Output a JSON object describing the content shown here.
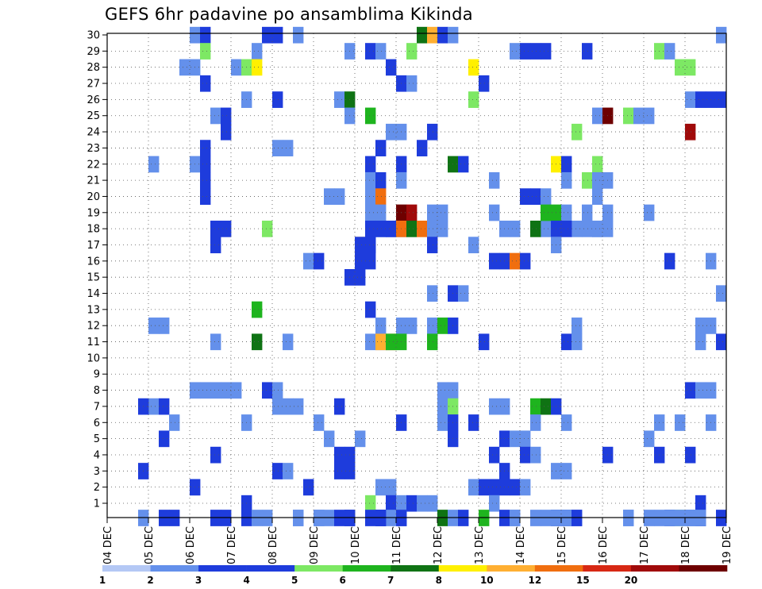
{
  "title": "GEFS 6hr padavine po ansamblima Kikinda",
  "chart_data": {
    "type": "heatmap",
    "title": "GEFS 6hr padavine po ansamblima Kikinda",
    "x_tick_labels": [
      "04 DEC",
      "05 DEC",
      "06 DEC",
      "07 DEC",
      "08 DEC",
      "09 DEC",
      "10 DEC",
      "11 DEC",
      "12 DEC",
      "13 DEC",
      "14 DEC",
      "15 DEC",
      "16 DEC",
      "17 DEC",
      "18 DEC",
      "19 DEC"
    ],
    "y_tick_labels": [
      "1",
      "2",
      "3",
      "4",
      "5",
      "6",
      "7",
      "8",
      "9",
      "10",
      "11",
      "12",
      "13",
      "14",
      "15",
      "16",
      "17",
      "18",
      "19",
      "20",
      "21",
      "22",
      "23",
      "24",
      "25",
      "26",
      "27",
      "28",
      "29",
      "30"
    ],
    "xlim": [
      0,
      60
    ],
    "ylim": [
      0,
      30
    ],
    "grid": true,
    "colorbar": {
      "labels": [
        "1",
        "2",
        "3",
        "4",
        "5",
        "6",
        "7",
        "8",
        "10",
        "12",
        "15",
        "20"
      ],
      "colors": [
        "#b4c8f5",
        "#6490eb",
        "#1e3cdc",
        "#1e3cdc",
        "#7de864",
        "#1eb41e",
        "#0f7314",
        "#fff000",
        "#ffaf32",
        "#f06e0f",
        "#d72814",
        "#a00a0a",
        "#6e0000"
      ],
      "breaks": [
        1,
        2,
        3,
        4,
        5,
        6,
        7,
        8,
        10,
        12,
        15,
        20
      ]
    },
    "cells": [
      [
        0,
        8,
        1
      ],
      [
        1,
        9,
        2
      ],
      [
        2,
        15,
        2
      ],
      [
        3,
        16,
        2
      ],
      [
        4,
        18,
        1
      ],
      [
        5,
        30,
        6
      ],
      [
        6,
        31,
        8
      ],
      [
        7,
        32,
        2
      ],
      [
        8,
        33,
        1
      ],
      [
        9,
        59,
        1
      ],
      [
        10,
        9,
        4
      ],
      [
        11,
        14,
        1
      ],
      [
        12,
        23,
        1
      ],
      [
        13,
        25,
        2
      ],
      [
        14,
        26,
        1
      ],
      [
        15,
        29,
        4
      ],
      [
        16,
        39,
        1
      ],
      [
        17,
        40,
        2
      ],
      [
        18,
        41,
        3
      ],
      [
        19,
        42,
        2
      ],
      [
        20,
        46,
        2
      ],
      [
        21,
        53,
        4
      ],
      [
        22,
        54,
        1
      ],
      [
        23,
        7,
        1
      ],
      [
        24,
        8,
        1
      ],
      [
        25,
        12,
        1
      ],
      [
        26,
        13,
        4
      ],
      [
        27,
        14,
        7
      ],
      [
        28,
        27,
        2
      ],
      [
        29,
        35,
        7
      ],
      [
        30,
        55,
        4
      ],
      [
        31,
        56,
        4
      ],
      [
        32,
        9,
        2
      ],
      [
        33,
        28,
        2
      ],
      [
        34,
        29,
        1
      ],
      [
        35,
        36,
        3
      ],
      [
        36,
        13,
        1
      ],
      [
        37,
        16,
        3
      ],
      [
        38,
        22,
        1
      ],
      [
        39,
        23,
        6
      ],
      [
        40,
        35,
        4
      ],
      [
        41,
        56,
        1
      ],
      [
        42,
        57,
        3
      ],
      [
        43,
        58,
        2
      ],
      [
        44,
        59,
        3
      ],
      [
        45,
        10,
        1
      ],
      [
        46,
        11,
        3
      ],
      [
        47,
        23,
        1
      ],
      [
        48,
        25,
        5
      ],
      [
        49,
        47,
        1
      ],
      [
        50,
        48,
        13
      ],
      [
        51,
        50,
        4
      ],
      [
        52,
        51,
        1
      ],
      [
        53,
        52,
        1
      ],
      [
        54,
        11,
        2
      ],
      [
        55,
        27,
        1
      ],
      [
        56,
        28,
        1
      ],
      [
        57,
        31,
        3
      ],
      [
        58,
        45,
        4
      ],
      [
        59,
        56,
        11
      ],
      [
        60,
        9,
        2
      ],
      [
        61,
        16,
        1
      ],
      [
        62,
        17,
        1
      ],
      [
        63,
        26,
        2
      ],
      [
        64,
        30,
        3
      ],
      [
        65,
        4,
        1
      ],
      [
        66,
        8,
        1
      ],
      [
        67,
        9,
        3
      ],
      [
        68,
        25,
        2
      ],
      [
        69,
        28,
        3
      ],
      [
        70,
        33,
        6
      ],
      [
        71,
        34,
        2
      ],
      [
        72,
        43,
        7
      ],
      [
        73,
        44,
        2
      ],
      [
        74,
        47,
        4
      ],
      [
        75,
        9,
        3
      ],
      [
        76,
        25,
        1
      ],
      [
        77,
        26,
        2
      ],
      [
        78,
        28,
        1
      ],
      [
        79,
        37,
        1
      ],
      [
        80,
        44,
        1
      ],
      [
        81,
        46,
        4
      ],
      [
        82,
        47,
        1
      ],
      [
        83,
        48,
        1
      ],
      [
        84,
        9,
        3
      ],
      [
        85,
        25,
        1
      ],
      [
        86,
        26,
        9
      ],
      [
        87,
        41,
        2
      ],
      [
        88,
        42,
        1
      ],
      [
        89,
        21,
        1
      ],
      [
        90,
        22,
        1
      ],
      [
        91,
        40,
        2
      ],
      [
        92,
        47,
        1
      ],
      [
        93,
        25,
        1
      ],
      [
        94,
        26,
        1
      ],
      [
        95,
        31,
        1
      ],
      [
        96,
        32,
        1
      ],
      [
        97,
        37,
        1
      ],
      [
        98,
        11,
        3
      ],
      [
        99,
        26,
        1
      ],
      [
        100,
        27,
        3
      ],
      [
        101,
        28,
        1
      ],
      [
        102,
        38,
        1
      ],
      [
        103,
        39,
        1
      ],
      [
        104,
        42,
        1
      ],
      [
        105,
        43,
        1
      ],
      [
        106,
        45,
        1
      ],
      [
        107,
        47,
        1
      ],
      [
        108,
        10,
        3
      ],
      [
        109,
        25,
        3
      ],
      [
        110,
        26,
        3
      ],
      [
        111,
        27,
        3
      ],
      [
        112,
        28,
        12
      ],
      [
        113,
        29,
        11
      ],
      [
        114,
        32,
        1
      ],
      [
        115,
        42,
        5
      ],
      [
        116,
        43,
        5
      ],
      [
        117,
        44,
        1
      ],
      [
        118,
        46,
        1
      ],
      [
        119,
        48,
        1
      ],
      [
        120,
        52,
        1
      ],
      [
        121,
        15,
        4
      ],
      [
        122,
        24,
        8
      ],
      [
        123,
        25,
        3
      ],
      [
        124,
        28,
        9
      ],
      [
        125,
        29,
        6
      ],
      [
        126,
        30,
        9
      ],
      [
        127,
        31,
        1
      ],
      [
        128,
        41,
        6
      ],
      [
        129,
        43,
        2
      ],
      [
        130,
        44,
        3
      ],
      [
        131,
        46,
        1
      ],
      [
        132,
        47,
        1
      ],
      [
        133,
        48,
        1
      ],
      [
        134,
        10,
        2
      ],
      [
        135,
        24,
        2
      ],
      [
        136,
        25,
        3
      ],
      [
        137,
        31,
        2
      ],
      [
        138,
        35,
        1
      ],
      [
        139,
        43,
        1
      ],
      [
        140,
        19,
        1
      ],
      [
        141,
        20,
        2
      ],
      [
        142,
        24,
        3
      ],
      [
        143,
        25,
        2
      ],
      [
        144,
        37,
        3
      ],
      [
        145,
        38,
        2
      ],
      [
        146,
        39,
        9
      ],
      [
        147,
        40,
        3
      ],
      [
        148,
        54,
        2
      ],
      [
        149,
        58,
        1
      ],
      [
        150,
        23,
        3
      ],
      [
        151,
        24,
        3
      ],
      [
        152,
        31,
        1
      ],
      [
        153,
        33,
        2
      ],
      [
        154,
        34,
        1
      ],
      [
        155,
        59,
        1
      ],
      [
        156,
        14,
        5
      ],
      [
        157,
        25,
        2
      ],
      [
        158,
        4,
        1
      ],
      [
        159,
        5,
        1
      ],
      [
        160,
        26,
        1
      ],
      [
        161,
        28,
        1
      ],
      [
        162,
        29,
        1
      ],
      [
        163,
        31,
        1
      ],
      [
        164,
        32,
        5
      ],
      [
        165,
        33,
        2
      ],
      [
        166,
        45,
        1
      ],
      [
        167,
        57,
        1
      ],
      [
        168,
        58,
        1
      ],
      [
        169,
        14,
        6
      ],
      [
        170,
        17,
        1
      ],
      [
        171,
        26,
        1
      ],
      [
        172,
        27,
        9
      ],
      [
        173,
        28,
        5
      ],
      [
        174,
        31,
        5
      ],
      [
        175,
        44,
        3
      ],
      [
        176,
        45,
        1
      ],
      [
        177,
        10,
        1
      ],
      [
        178,
        25,
        1
      ],
      [
        179,
        26,
        8
      ],
      [
        180,
        27,
        5
      ],
      [
        181,
        36,
        3
      ],
      [
        182,
        57,
        1
      ],
      [
        183,
        59,
        3
      ],
      [
        184,
        8,
        1
      ],
      [
        185,
        9,
        1
      ],
      [
        186,
        10,
        1
      ],
      [
        187,
        11,
        1
      ],
      [
        188,
        12,
        1
      ],
      [
        189,
        15,
        2
      ],
      [
        190,
        16,
        1
      ],
      [
        191,
        32,
        1
      ],
      [
        192,
        33,
        1
      ],
      [
        193,
        56,
        3
      ],
      [
        194,
        57,
        1
      ],
      [
        195,
        58,
        1
      ],
      [
        196,
        4,
        1
      ],
      [
        197,
        5,
        2
      ],
      [
        198,
        16,
        1
      ],
      [
        199,
        17,
        1
      ],
      [
        200,
        18,
        1
      ],
      [
        201,
        22,
        2
      ],
      [
        202,
        32,
        1
      ],
      [
        203,
        33,
        4
      ],
      [
        204,
        37,
        1
      ],
      [
        205,
        38,
        1
      ],
      [
        206,
        41,
        5
      ],
      [
        207,
        42,
        6
      ],
      [
        208,
        43,
        2
      ],
      [
        209,
        3,
        2
      ],
      [
        210,
        6,
        1
      ],
      [
        211,
        13,
        1
      ],
      [
        212,
        20,
        1
      ],
      [
        213,
        28,
        3
      ],
      [
        214,
        32,
        1
      ],
      [
        215,
        33,
        3
      ],
      [
        216,
        35,
        3
      ],
      [
        217,
        41,
        1
      ],
      [
        218,
        44,
        1
      ],
      [
        219,
        53,
        1
      ],
      [
        220,
        55,
        1
      ],
      [
        221,
        58,
        1
      ],
      [
        222,
        5,
        2
      ],
      [
        223,
        21,
        1
      ],
      [
        224,
        24,
        1
      ],
      [
        225,
        33,
        2
      ],
      [
        226,
        38,
        2
      ],
      [
        227,
        39,
        1
      ],
      [
        228,
        40,
        1
      ],
      [
        229,
        52,
        1
      ],
      [
        230,
        10,
        3
      ],
      [
        231,
        22,
        3
      ],
      [
        232,
        23,
        3
      ],
      [
        233,
        37,
        2
      ],
      [
        234,
        40,
        2
      ],
      [
        235,
        41,
        1
      ],
      [
        236,
        48,
        2
      ],
      [
        237,
        53,
        3
      ],
      [
        238,
        56,
        2
      ],
      [
        239,
        3,
        2
      ],
      [
        240,
        16,
        3
      ],
      [
        241,
        17,
        1
      ],
      [
        242,
        22,
        3
      ],
      [
        243,
        23,
        3
      ],
      [
        244,
        38,
        3
      ],
      [
        245,
        43,
        1
      ],
      [
        246,
        44,
        1
      ],
      [
        247,
        8,
        3
      ],
      [
        248,
        19,
        3
      ],
      [
        249,
        26,
        1
      ],
      [
        250,
        27,
        1
      ],
      [
        251,
        35,
        1
      ],
      [
        252,
        36,
        3
      ],
      [
        253,
        37,
        2
      ],
      [
        254,
        38,
        3
      ],
      [
        255,
        39,
        3
      ],
      [
        256,
        40,
        1
      ],
      [
        257,
        13,
        2
      ],
      [
        258,
        25,
        4
      ],
      [
        259,
        27,
        3
      ],
      [
        260,
        28,
        1
      ],
      [
        261,
        29,
        3
      ],
      [
        262,
        30,
        1
      ],
      [
        263,
        31,
        1
      ],
      [
        264,
        37,
        1
      ],
      [
        265,
        57,
        2
      ],
      [
        266,
        10,
        3
      ],
      [
        267,
        11,
        2
      ],
      [
        268,
        36,
        5
      ],
      [
        269,
        38,
        3
      ],
      [
        270,
        41,
        1
      ],
      [
        271,
        45,
        1
      ],
      [
        272,
        50,
        1
      ],
      [
        273,
        59,
        3
      ],
      [
        274,
        3,
        1
      ],
      [
        275,
        18,
        1
      ],
      [
        276,
        25,
        3
      ],
      [
        277,
        26,
        2
      ],
      [
        278,
        28,
        1
      ],
      [
        279,
        32,
        6
      ],
      [
        280,
        39,
        1
      ],
      [
        281,
        43,
        3
      ],
      [
        282,
        44,
        3
      ],
      [
        283,
        50,
        1
      ],
      [
        284,
        52,
        1
      ],
      [
        285,
        54,
        3
      ],
      [
        286,
        55,
        4
      ],
      [
        287,
        56,
        1
      ],
      [
        288,
        57,
        1
      ],
      [
        289,
        5,
        2
      ],
      [
        290,
        13,
        2
      ],
      [
        291,
        14,
        1
      ],
      [
        292,
        15,
        1
      ],
      [
        293,
        20,
        1
      ],
      [
        294,
        21,
        1
      ],
      [
        295,
        23,
        3
      ],
      [
        296,
        26,
        2
      ],
      [
        297,
        27,
        1
      ],
      [
        298,
        28,
        2
      ],
      [
        299,
        33,
        1
      ],
      [
        300,
        42,
        1
      ],
      [
        301,
        43,
        1
      ],
      [
        302,
        44,
        1
      ],
      [
        303,
        45,
        2
      ],
      [
        304,
        55,
        1
      ],
      [
        305,
        56,
        1
      ],
      [
        306,
        57,
        2
      ],
      [
        307,
        6,
        2
      ],
      [
        308,
        18,
        1
      ],
      [
        309,
        20,
        1
      ],
      [
        310,
        22,
        2
      ],
      [
        311,
        23,
        2
      ],
      [
        312,
        26,
        2
      ],
      [
        313,
        34,
        2
      ],
      [
        314,
        39,
        1
      ],
      [
        315,
        53,
        1
      ],
      [
        316,
        54,
        1
      ],
      [
        317,
        56,
        1
      ],
      [
        318,
        57,
        1
      ]
    ]
  }
}
